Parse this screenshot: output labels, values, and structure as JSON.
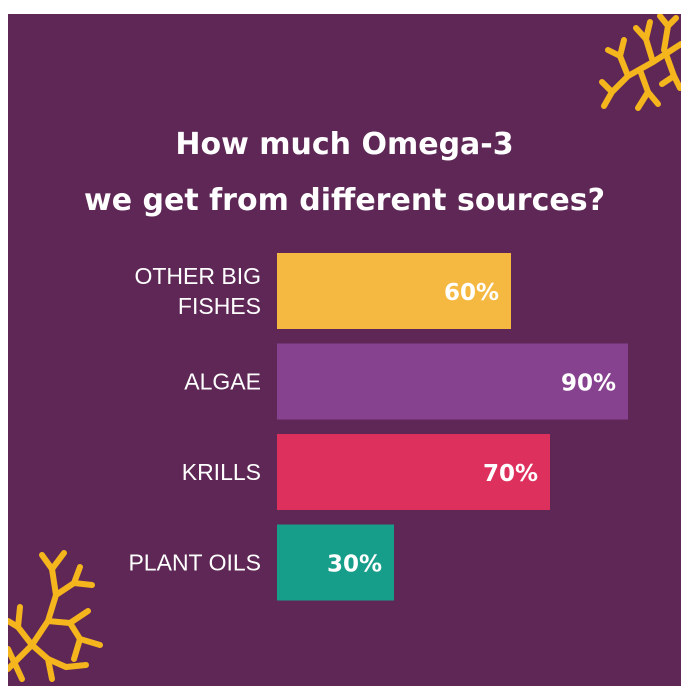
{
  "title_lines": [
    "How much Omega-3",
    "we get from different sources?"
  ],
  "colors": {
    "background": "#5e2756",
    "coral": "#f5b51c",
    "text": "#ffffff"
  },
  "decorations": [
    "coral-top-right",
    "coral-bottom-left"
  ],
  "chart_data": {
    "type": "bar",
    "orientation": "horizontal",
    "title": "How much Omega-3 we get from different sources?",
    "unit": "%",
    "categories": [
      "OTHER BIG FISHES",
      "ALGAE",
      "KRILLS",
      "PLANT OILS"
    ],
    "category_lines": [
      [
        "OTHER BIG",
        "FISHES"
      ],
      [
        "ALGAE"
      ],
      [
        "KRILLS"
      ],
      [
        "PLANT OILS"
      ]
    ],
    "values": [
      60,
      90,
      70,
      30
    ],
    "value_labels": [
      "60%",
      "90%",
      "70%",
      "30%"
    ],
    "bar_colors": [
      "#f5b841",
      "#86418f",
      "#de305c",
      "#179e8b"
    ],
    "xlim": [
      0,
      100
    ],
    "grid": false,
    "legend": "none",
    "xlabel": "",
    "ylabel": ""
  }
}
